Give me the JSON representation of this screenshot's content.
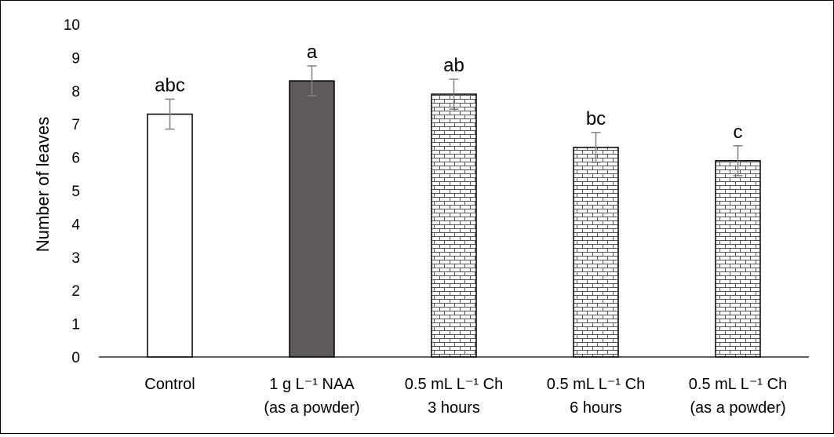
{
  "chart_data": {
    "type": "bar",
    "title": "",
    "xlabel": "",
    "ylabel": "Number of leaves",
    "ylim": [
      0,
      10
    ],
    "yticks": [
      "0",
      "1",
      "2",
      "3",
      "4",
      "5",
      "6",
      "7",
      "8",
      "9",
      "10"
    ],
    "grid": false,
    "legend": "none",
    "categories": [
      {
        "line1": "Control",
        "line2": ""
      },
      {
        "line1": "1 g L⁻¹ NAA",
        "line2": "(as a powder)"
      },
      {
        "line1": "0.5 mL L⁻¹ Ch",
        "line2": "3 hours"
      },
      {
        "line1": "0.5 mL L⁻¹ Ch",
        "line2": "6 hours"
      },
      {
        "line1": "0.5 mL L⁻¹ Ch",
        "line2": "(as a powder)"
      }
    ],
    "values": [
      7.3,
      8.3,
      7.9,
      6.3,
      5.9
    ],
    "error": [
      0.45,
      0.45,
      0.45,
      0.45,
      0.45
    ],
    "letters": [
      "abc",
      "a",
      "ab",
      "bc",
      "c"
    ],
    "fills": [
      "white",
      "dark-gray",
      "brick-pattern",
      "brick-pattern",
      "brick-pattern"
    ],
    "colors": {
      "dark": "#5f5a5a",
      "outline": "#000000",
      "error_bar": "#808080",
      "axis": "#000000"
    }
  }
}
